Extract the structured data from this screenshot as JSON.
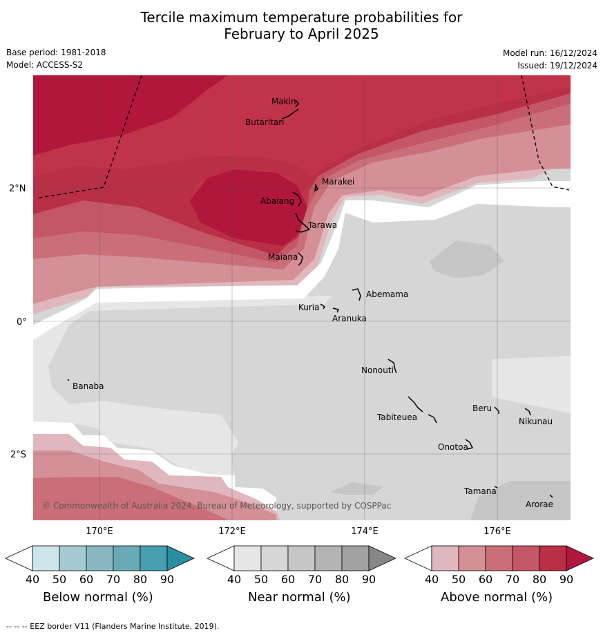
{
  "title": {
    "line1": "Tercile maximum temperature probabilities for",
    "line2": "February to April 2025"
  },
  "meta": {
    "base_period": "Base period: 1981-2018",
    "model": "Model: ACCESS-S2",
    "model_run": "Model run: 16/12/2024",
    "issued": "Issued: 19/12/2024"
  },
  "map": {
    "lat_ticks": [
      "2°N",
      "0°",
      "2°S"
    ],
    "lon_ticks": [
      "170°E",
      "172°E",
      "174°E",
      "176°E"
    ],
    "places": {
      "makin": "Makin",
      "butaritari": "Butaritari",
      "marakei": "Marakei",
      "abaiang": "Abaiang",
      "tarawa": "Tarawa",
      "maiana": "Maiana",
      "abemama": "Abemama",
      "kuria": "Kuria",
      "aranuka": "Aranuka",
      "banaba": "Banaba",
      "nonouti": "Nonouti",
      "beru": "Beru",
      "nikunau": "Nikunau",
      "tabiteuea": "Tabiteuea",
      "onotoa": "Onotoa",
      "tamana": "Tamana",
      "arorae": "Arorae"
    },
    "copyright": "© Commonwealth of Australia 2024, Bureau of Meteorology, supported by COSPPac"
  },
  "colorbars": {
    "ticks": [
      "40",
      "50",
      "60",
      "70",
      "80",
      "90"
    ],
    "below": {
      "label": "Below normal (%)",
      "colors": [
        "#ffffff",
        "#cde4ea",
        "#a6cad2",
        "#89b8c3",
        "#6aaab7",
        "#46a0b0",
        "#2a8fa1"
      ]
    },
    "near": {
      "label": "Near normal (%)",
      "colors": [
        "#ffffff",
        "#e6e6e6",
        "#d6d6d6",
        "#c6c6c6",
        "#b4b4b4",
        "#a2a2a2",
        "#878787"
      ]
    },
    "above": {
      "label": "Above normal (%)",
      "colors": [
        "#ffffff",
        "#e0b7bc",
        "#d48f97",
        "#ca6f78",
        "#c45766",
        "#b82f46",
        "#b0173a"
      ]
    }
  },
  "footer": "--  --  -- EEZ border V11 (Flanders Marine Institute, 2019)."
}
